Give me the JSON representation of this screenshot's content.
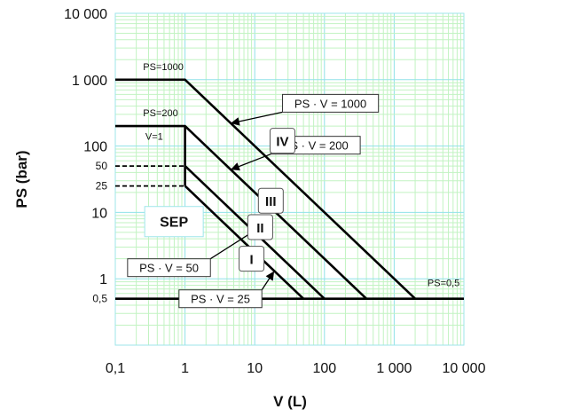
{
  "chart_data": {
    "type": "line",
    "title": "",
    "xlabel": "V (L)",
    "ylabel": "PS (bar)",
    "x_scale": "log",
    "y_scale": "log",
    "xlim": [
      0.1,
      10000
    ],
    "ylim": [
      0.1,
      10000
    ],
    "grid": true,
    "x_ticks": [
      {
        "value": 0.1,
        "label": "0,1"
      },
      {
        "value": 1,
        "label": "1"
      },
      {
        "value": 10,
        "label": "10"
      },
      {
        "value": 100,
        "label": "100"
      },
      {
        "value": 1000,
        "label": "1 000"
      },
      {
        "value": 10000,
        "label": "10 000"
      }
    ],
    "y_ticks": [
      {
        "value": 0.5,
        "label": "0,5"
      },
      {
        "value": 1,
        "label": "1"
      },
      {
        "value": 10,
        "label": "10"
      },
      {
        "value": 25,
        "label": "25"
      },
      {
        "value": 50,
        "label": "50"
      },
      {
        "value": 100,
        "label": "100"
      },
      {
        "value": 1000,
        "label": "1 000"
      },
      {
        "value": 10000,
        "label": "10 000"
      }
    ],
    "series": [
      {
        "name": "PS · V = 1000",
        "points": [
          [
            0.1,
            1000
          ],
          [
            1,
            1000
          ],
          [
            2000,
            0.5
          ]
        ]
      },
      {
        "name": "PS · V = 200",
        "points": [
          [
            0.1,
            200
          ],
          [
            1,
            200
          ],
          [
            400,
            0.5
          ]
        ]
      },
      {
        "name": "PS · V = 50",
        "points": [
          [
            1,
            50
          ],
          [
            100,
            0.5
          ]
        ]
      },
      {
        "name": "PS · V = 25",
        "points": [
          [
            1,
            25
          ],
          [
            50,
            0.5
          ]
        ]
      },
      {
        "name": "V=1",
        "points": [
          [
            1,
            25
          ],
          [
            1,
            200
          ]
        ]
      },
      {
        "name": "PS=0,5",
        "points": [
          [
            0.1,
            0.5
          ],
          [
            10000,
            0.5
          ]
        ]
      }
    ],
    "dashed_lines": [
      {
        "label": "50",
        "points": [
          [
            0.1,
            50
          ],
          [
            1,
            50
          ]
        ]
      },
      {
        "label": "25",
        "points": [
          [
            0.1,
            25
          ],
          [
            1,
            25
          ]
        ]
      }
    ],
    "annotations": {
      "ps_1000": {
        "text": "PS=1000",
        "x": 0.25,
        "y": 1400
      },
      "ps_200": {
        "text": "PS=200",
        "x": 0.25,
        "y": 280
      },
      "v_1": {
        "text": "V=1",
        "x": 0.27,
        "y": 125
      },
      "ps_0_5": {
        "text": "PS=0,5",
        "x": 3000,
        "y": 0.78
      }
    },
    "callouts": [
      {
        "text": "PS · V = 1000",
        "box_x": 25,
        "box_y": 600,
        "arrow_to": [
          4.5,
          220
        ]
      },
      {
        "text": "PS · V = 200",
        "box_x": 17,
        "box_y": 140,
        "arrow_to": [
          4.5,
          44
        ]
      },
      {
        "text": "PS · V = 50",
        "box_x": 0.15,
        "box_y": 2.0,
        "arrow_to": [
          12,
          6
        ]
      },
      {
        "text": "PS · V = 25",
        "box_x": 0.82,
        "box_y": 0.68,
        "arrow_to": [
          19,
          1.3
        ]
      }
    ],
    "categories": [
      {
        "label": "IV",
        "x": 25,
        "y": 120
      },
      {
        "label": "III",
        "x": 17,
        "y": 15
      },
      {
        "label": "II",
        "x": 12,
        "y": 6
      },
      {
        "label": "I",
        "x": 9,
        "y": 2
      }
    ],
    "region_label": {
      "text": "SEP",
      "x": 0.28,
      "y": 7.5
    }
  }
}
